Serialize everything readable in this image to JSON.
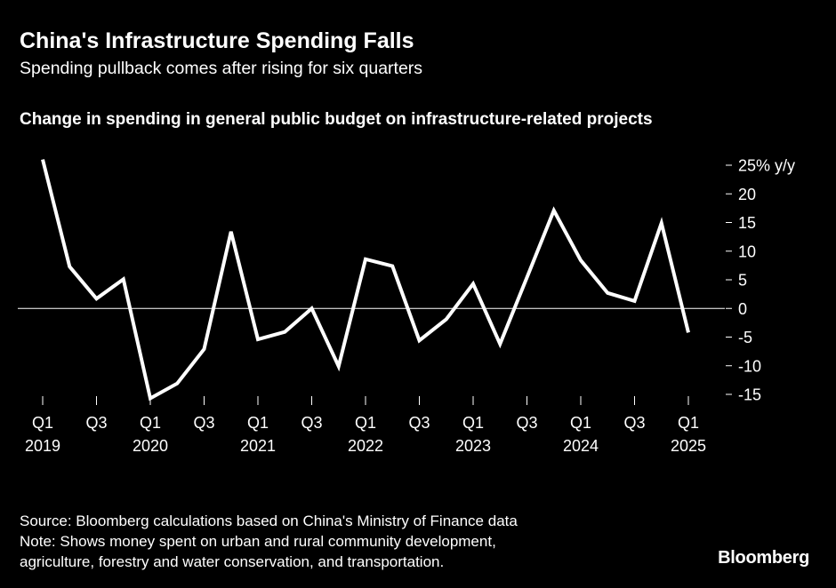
{
  "title": "China's Infrastructure Spending Falls",
  "subtitle": "Spending pullback comes after rising for six quarters",
  "chart_heading": "Change in spending in general public budget on infrastructure-related projects",
  "footer": {
    "source": "Source: Bloomberg calculations based on China's Ministry of Finance data",
    "note_line1": "Note: Shows money spent on urban and rural community development,",
    "note_line2": "agriculture, forestry and water conservation, and transportation."
  },
  "logo": "Bloomberg",
  "colors": {
    "background": "#000000",
    "line": "#ffffff",
    "text": "#ffffff"
  },
  "chart_data": {
    "type": "line",
    "x": [
      "Q1 2019",
      "Q2 2019",
      "Q3 2019",
      "Q4 2019",
      "Q1 2020",
      "Q2 2020",
      "Q3 2020",
      "Q4 2020",
      "Q1 2021",
      "Q2 2021",
      "Q3 2021",
      "Q4 2021",
      "Q1 2022",
      "Q2 2022",
      "Q3 2022",
      "Q4 2022",
      "Q1 2023",
      "Q2 2023",
      "Q3 2023",
      "Q4 2023",
      "Q1 2024",
      "Q2 2024",
      "Q3 2024",
      "Q4 2024",
      "Q1 2025"
    ],
    "series": [
      {
        "values": [
          26,
          7.3,
          1.7,
          5.1,
          -15.7,
          -13.1,
          -7.1,
          13.4,
          -5.4,
          -4.1,
          0,
          -10.1,
          8.6,
          7.4,
          -5.6,
          -1.9,
          4.3,
          -6.2,
          5.4,
          17.1,
          8.4,
          2.7,
          1.3,
          14.9,
          -4.2
        ]
      }
    ],
    "y_unit": "% y/y",
    "ylim": [
      -15,
      25
    ],
    "y_ticks": [
      25,
      20,
      15,
      10,
      5,
      0,
      -5,
      -10,
      -15
    ],
    "y_tick_labels": [
      "25% y/y",
      "20",
      "15",
      "10",
      "5",
      "0",
      "-5",
      "-10",
      "-15"
    ],
    "x_ticks": [
      {
        "index": 0,
        "quarter": "Q1",
        "year": "2019"
      },
      {
        "index": 2,
        "quarter": "Q3",
        "year": ""
      },
      {
        "index": 4,
        "quarter": "Q1",
        "year": "2020"
      },
      {
        "index": 6,
        "quarter": "Q3",
        "year": ""
      },
      {
        "index": 8,
        "quarter": "Q1",
        "year": "2021"
      },
      {
        "index": 10,
        "quarter": "Q3",
        "year": ""
      },
      {
        "index": 12,
        "quarter": "Q1",
        "year": "2022"
      },
      {
        "index": 14,
        "quarter": "Q3",
        "year": ""
      },
      {
        "index": 16,
        "quarter": "Q1",
        "year": "2023"
      },
      {
        "index": 18,
        "quarter": "Q3",
        "year": ""
      },
      {
        "index": 20,
        "quarter": "Q1",
        "year": "2024"
      },
      {
        "index": 22,
        "quarter": "Q3",
        "year": ""
      },
      {
        "index": 24,
        "quarter": "Q1",
        "year": "2025"
      }
    ],
    "zero_line": true,
    "grid": false,
    "y_axis_position": "right"
  }
}
